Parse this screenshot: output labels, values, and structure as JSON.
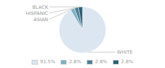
{
  "chart_data": {
    "type": "pie",
    "categories": [
      "WHITE",
      "ASIAN",
      "HISPANIC",
      "BLACK"
    ],
    "values": [
      91.5,
      2.8,
      2.8,
      2.8
    ],
    "value_labels": [
      "91.5%",
      "2.8%",
      "2.8%",
      "2.8%"
    ],
    "colors": [
      "#dce6f1",
      "#7fafc2",
      "#4d7f97",
      "#2c5f76"
    ],
    "legend": "bottom"
  }
}
